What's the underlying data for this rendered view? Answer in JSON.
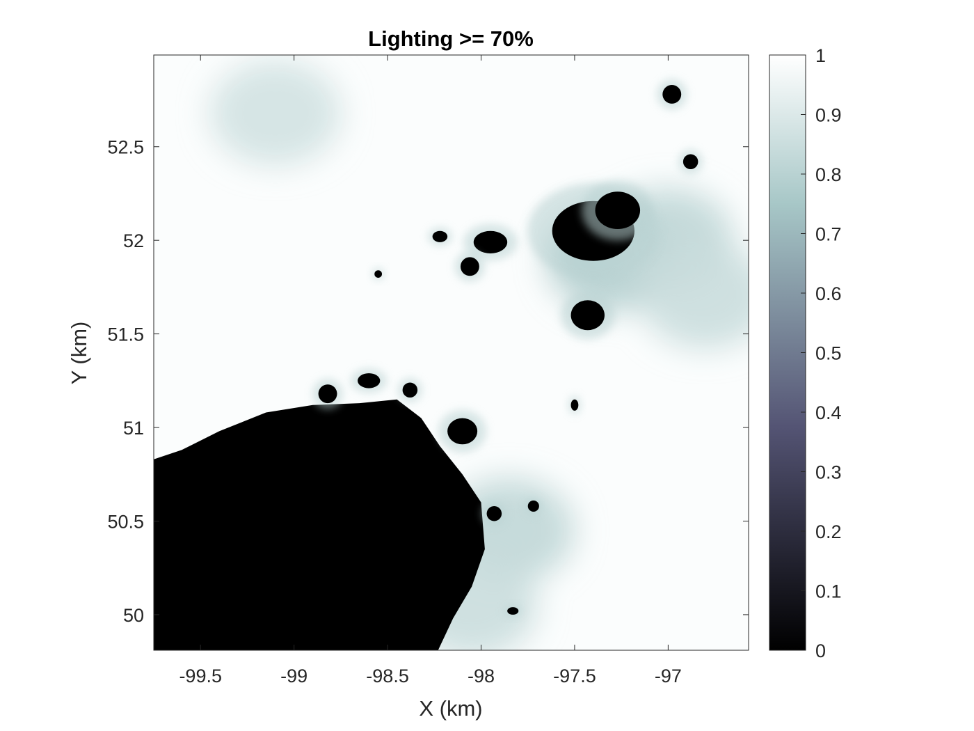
{
  "chart_data": {
    "type": "heatmap",
    "title": "Lighting >= 70%",
    "xlabel": "X (km)",
    "ylabel": "Y (km)",
    "xlim": [
      -99.75,
      -96.57
    ],
    "ylim": [
      49.81,
      52.99
    ],
    "xticks": [
      -99.5,
      -99,
      -98.5,
      -98,
      -97.5,
      -97
    ],
    "xtick_labels": [
      "-99.5",
      "-99",
      "-98.5",
      "-98",
      "-97.5",
      "-97"
    ],
    "yticks": [
      50,
      50.5,
      51,
      51.5,
      52,
      52.5
    ],
    "ytick_labels": [
      "50",
      "50.5",
      "51",
      "51.5",
      "52",
      "52.5"
    ],
    "grid": false,
    "colorbar": {
      "range": [
        0,
        1
      ],
      "ticks": [
        0,
        0.1,
        0.2,
        0.3,
        0.4,
        0.5,
        0.6,
        0.7,
        0.8,
        0.9,
        1
      ],
      "tick_labels": [
        "0",
        "0.1",
        "0.2",
        "0.3",
        "0.4",
        "0.5",
        "0.6",
        "0.7",
        "0.8",
        "0.9",
        "1"
      ],
      "colormap": "bone"
    },
    "dark_region": {
      "value": 0,
      "boundary": [
        [
          -99.75,
          49.81
        ],
        [
          -99.75,
          50.83
        ],
        [
          -99.6,
          50.88
        ],
        [
          -99.4,
          50.98
        ],
        [
          -99.15,
          51.08
        ],
        [
          -98.9,
          51.12
        ],
        [
          -98.65,
          51.13
        ],
        [
          -98.45,
          51.15
        ],
        [
          -98.32,
          51.05
        ],
        [
          -98.22,
          50.9
        ],
        [
          -98.1,
          50.75
        ],
        [
          -98.0,
          50.6
        ],
        [
          -97.98,
          50.35
        ],
        [
          -98.05,
          50.15
        ],
        [
          -98.15,
          49.98
        ],
        [
          -98.23,
          49.81
        ]
      ]
    },
    "bright_field": {
      "value_range": [
        0.85,
        1
      ],
      "note_values": [
        {
          "x": -99.1,
          "y": 52.68,
          "value": 0.87
        },
        {
          "x": -97.3,
          "y": 51.9,
          "value": 0.78
        },
        {
          "x": -97.0,
          "y": 52.0,
          "value": 0.82
        },
        {
          "x": -96.8,
          "y": 51.7,
          "value": 0.85
        },
        {
          "x": -97.85,
          "y": 50.45,
          "value": 0.82
        },
        {
          "x": -98.05,
          "y": 50.05,
          "value": 0.85
        }
      ]
    },
    "shadow_spots": [
      {
        "x": -97.4,
        "y": 52.05,
        "rx": 0.22,
        "ry": 0.16,
        "value": 0
      },
      {
        "x": -97.27,
        "y": 52.16,
        "rx": 0.12,
        "ry": 0.1,
        "value": 0
      },
      {
        "x": -97.95,
        "y": 51.99,
        "rx": 0.09,
        "ry": 0.06,
        "value": 0
      },
      {
        "x": -98.06,
        "y": 51.86,
        "rx": 0.05,
        "ry": 0.05,
        "value": 0
      },
      {
        "x": -97.43,
        "y": 51.6,
        "rx": 0.09,
        "ry": 0.08,
        "value": 0
      },
      {
        "x": -96.98,
        "y": 52.78,
        "rx": 0.05,
        "ry": 0.05,
        "value": 0
      },
      {
        "x": -96.88,
        "y": 52.42,
        "rx": 0.04,
        "ry": 0.04,
        "value": 0
      },
      {
        "x": -98.1,
        "y": 50.98,
        "rx": 0.08,
        "ry": 0.07,
        "value": 0
      },
      {
        "x": -98.82,
        "y": 51.18,
        "rx": 0.05,
        "ry": 0.05,
        "value": 0
      },
      {
        "x": -98.6,
        "y": 51.25,
        "rx": 0.06,
        "ry": 0.04,
        "value": 0
      },
      {
        "x": -98.38,
        "y": 51.2,
        "rx": 0.04,
        "ry": 0.04,
        "value": 0
      },
      {
        "x": -98.22,
        "y": 52.02,
        "rx": 0.04,
        "ry": 0.03,
        "value": 0
      },
      {
        "x": -98.55,
        "y": 51.82,
        "rx": 0.02,
        "ry": 0.02,
        "value": 0
      },
      {
        "x": -97.93,
        "y": 50.54,
        "rx": 0.04,
        "ry": 0.04,
        "value": 0
      },
      {
        "x": -97.72,
        "y": 50.58,
        "rx": 0.03,
        "ry": 0.03,
        "value": 0
      },
      {
        "x": -97.5,
        "y": 51.12,
        "rx": 0.02,
        "ry": 0.03,
        "value": 0
      },
      {
        "x": -97.83,
        "y": 50.02,
        "rx": 0.03,
        "ry": 0.02,
        "value": 0
      }
    ]
  }
}
